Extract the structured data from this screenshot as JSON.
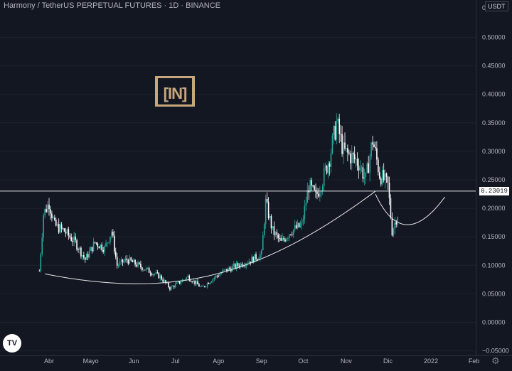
{
  "header": {
    "title": "Harmony / TetherUS PERPETUAL FUTURES · 1D · BINANCE",
    "unit": "USDT"
  },
  "logo_text": "[IN]",
  "price_tag": "0.23019",
  "colors": {
    "background": "#131722",
    "candle_up": "#26a69a",
    "candle_down": "#ffffff",
    "axis_text": "#b2b5be",
    "drawing": "#e6e6e6"
  },
  "chart_data": {
    "type": "candlestick",
    "x_ticks": [
      "Abr",
      "Mayo",
      "Jun",
      "Jul",
      "Ago",
      "Sep",
      "Oct",
      "Nov",
      "Dic",
      "2022",
      "Feb"
    ],
    "y_ticks": [
      "0.50000",
      "0.45000",
      "0.40000",
      "0.35000",
      "0.30000",
      "0.25000",
      "0.20000",
      "0.15000",
      "0.10000",
      "0.05000",
      "0.00000",
      "−0.05000"
    ],
    "y_top_label": "0",
    "ylim": [
      -0.05,
      0.55
    ],
    "horizontal_line": 0.23019,
    "close_path": [
      [
        "2021-03-25",
        0.09
      ],
      [
        "2021-03-28",
        0.19
      ],
      [
        "2021-04-01",
        0.21
      ],
      [
        "2021-04-05",
        0.17
      ],
      [
        "2021-04-12",
        0.16
      ],
      [
        "2021-04-20",
        0.14
      ],
      [
        "2021-04-27",
        0.11
      ],
      [
        "2021-05-04",
        0.14
      ],
      [
        "2021-05-11",
        0.13
      ],
      [
        "2021-05-16",
        0.16
      ],
      [
        "2021-05-20",
        0.1
      ],
      [
        "2021-05-27",
        0.11
      ],
      [
        "2021-06-04",
        0.1
      ],
      [
        "2021-06-12",
        0.09
      ],
      [
        "2021-06-20",
        0.08
      ],
      [
        "2021-06-27",
        0.06
      ],
      [
        "2021-07-04",
        0.07
      ],
      [
        "2021-07-10",
        0.08
      ],
      [
        "2021-07-20",
        0.06
      ],
      [
        "2021-07-27",
        0.075
      ],
      [
        "2021-08-05",
        0.09
      ],
      [
        "2021-08-15",
        0.1
      ],
      [
        "2021-08-25",
        0.11
      ],
      [
        "2021-09-01",
        0.12
      ],
      [
        "2021-09-04",
        0.21
      ],
      [
        "2021-09-09",
        0.16
      ],
      [
        "2021-09-15",
        0.14
      ],
      [
        "2021-09-22",
        0.16
      ],
      [
        "2021-09-30",
        0.17
      ],
      [
        "2021-10-05",
        0.24
      ],
      [
        "2021-10-10",
        0.22
      ],
      [
        "2021-10-15",
        0.25
      ],
      [
        "2021-10-20",
        0.29
      ],
      [
        "2021-10-25",
        0.35
      ],
      [
        "2021-10-30",
        0.3
      ],
      [
        "2021-11-05",
        0.29
      ],
      [
        "2021-11-10",
        0.28
      ],
      [
        "2021-11-15",
        0.25
      ],
      [
        "2021-11-20",
        0.32
      ],
      [
        "2021-11-25",
        0.26
      ],
      [
        "2021-12-01",
        0.24
      ],
      [
        "2021-12-04",
        0.16
      ],
      [
        "2021-12-08",
        0.19
      ]
    ],
    "cup_curve": [
      [
        "2021-03-29",
        0.085
      ],
      [
        "2021-06-30",
        0.04
      ],
      [
        "2021-08-31",
        0.08
      ],
      [
        "2021-11-22",
        0.23
      ]
    ],
    "handle_curve": [
      [
        "2021-11-22",
        0.225
      ],
      [
        "2021-12-12",
        0.12
      ],
      [
        "2022-01-11",
        0.22
      ]
    ]
  }
}
